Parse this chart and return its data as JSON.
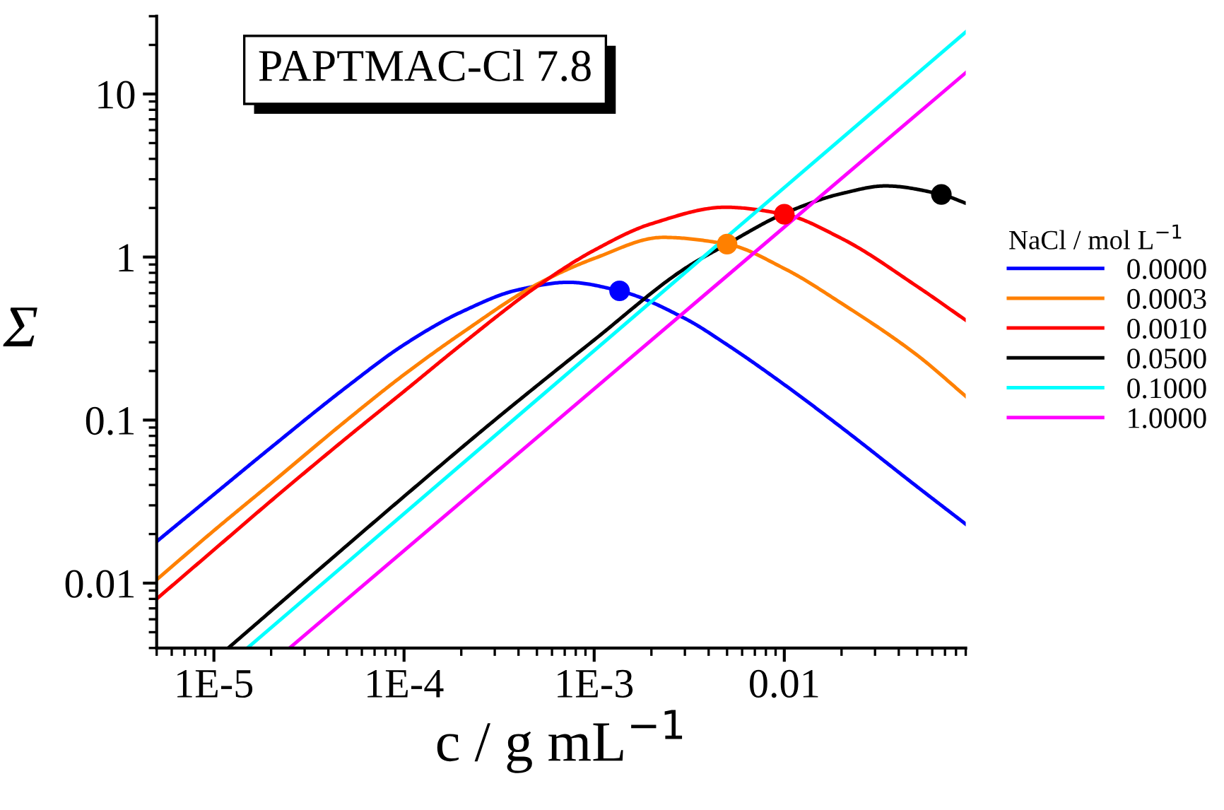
{
  "chart_data": {
    "type": "line",
    "title": "PAPTMAC-Cl 7.8",
    "xlabel": "c / g mL$^{−1}$",
    "ylabel": "Σ",
    "legend_title": "NaCl / mol L$^{−1}$",
    "log": "xy",
    "xlim": [
      5e-06,
      0.09
    ],
    "ylim": [
      0.004,
      30
    ],
    "xticks": [
      {
        "value": 1e-05,
        "label": "1E-5"
      },
      {
        "value": 0.0001,
        "label": "1E-4"
      },
      {
        "value": 0.001,
        "label": "1E-3"
      },
      {
        "value": 0.01,
        "label": "0.01"
      }
    ],
    "yticks": [
      0.01,
      0.1,
      1,
      10
    ],
    "grid": false,
    "legend": "right",
    "marker": "none",
    "line_style": "solid",
    "series": [
      {
        "name": "0.0000",
        "color": "#0000ff",
        "x": [
          5e-06,
          1e-05,
          2e-05,
          5e-05,
          0.0001,
          0.0002,
          0.0004,
          0.00073,
          0.00136,
          0.003,
          0.005,
          0.01,
          0.02,
          0.05,
          0.09
        ],
        "values": [
          0.018,
          0.035,
          0.068,
          0.16,
          0.29,
          0.46,
          0.63,
          0.7,
          0.62,
          0.42,
          0.29,
          0.165,
          0.09,
          0.039,
          0.023
        ]
      },
      {
        "name": "0.0003",
        "color": "#ff8000",
        "x": [
          5e-06,
          1e-05,
          2e-05,
          5e-05,
          0.0001,
          0.0002,
          0.0005,
          0.001,
          0.0023,
          0.005,
          0.01,
          0.02,
          0.05,
          0.09
        ],
        "values": [
          0.0105,
          0.021,
          0.041,
          0.1,
          0.19,
          0.34,
          0.68,
          0.98,
          1.32,
          1.2,
          0.85,
          0.52,
          0.25,
          0.14
        ]
      },
      {
        "name": "0.0010",
        "color": "#ff0000",
        "x": [
          5e-06,
          1e-05,
          2e-05,
          5e-05,
          0.0001,
          0.0002,
          0.0005,
          0.001,
          0.002,
          0.0049,
          0.01,
          0.02,
          0.05,
          0.09
        ],
        "values": [
          0.008,
          0.016,
          0.032,
          0.078,
          0.15,
          0.29,
          0.66,
          1.1,
          1.6,
          2.02,
          1.83,
          1.3,
          0.66,
          0.41
        ]
      },
      {
        "name": "0.0500",
        "color": "#000000",
        "x": [
          1.19e-05,
          5e-05,
          0.0001,
          0.0003,
          0.001,
          0.003,
          0.005,
          0.01,
          0.02,
          0.034,
          0.067,
          0.09
        ],
        "values": [
          0.004,
          0.017,
          0.034,
          0.1,
          0.31,
          0.85,
          1.2,
          1.85,
          2.45,
          2.73,
          2.42,
          2.14
        ]
      },
      {
        "name": "0.1000",
        "color": "#00ffff",
        "x": [
          1.5e-05,
          0.09
        ],
        "values": [
          0.004,
          24
        ]
      },
      {
        "name": "1.0000",
        "color": "#ff00ff",
        "x": [
          2.5e-05,
          0.09
        ],
        "values": [
          0.004,
          13.5
        ]
      },
      {
        "type": "scatter",
        "marker": "circle",
        "x": [
          0.00136,
          0.005,
          0.01,
          0.067
        ],
        "values": [
          0.62,
          1.2,
          1.83,
          2.42
        ],
        "colors": [
          "#0000ff",
          "#ff8000",
          "#ff0000",
          "#000000"
        ]
      }
    ]
  }
}
